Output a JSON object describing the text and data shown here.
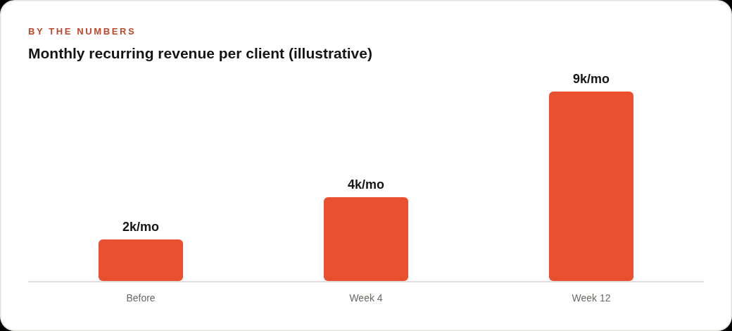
{
  "chart_data": {
    "type": "bar",
    "subtitle": "BY THE NUMBERS",
    "title": "Monthly recurring revenue per client (illustrative)",
    "categories": [
      "Before",
      "Week 4",
      "Week 12"
    ],
    "values": [
      2,
      4,
      9
    ],
    "value_labels": [
      "2k/mo",
      "4k/mo",
      "9k/mo"
    ],
    "color": "#e8502f"
  }
}
